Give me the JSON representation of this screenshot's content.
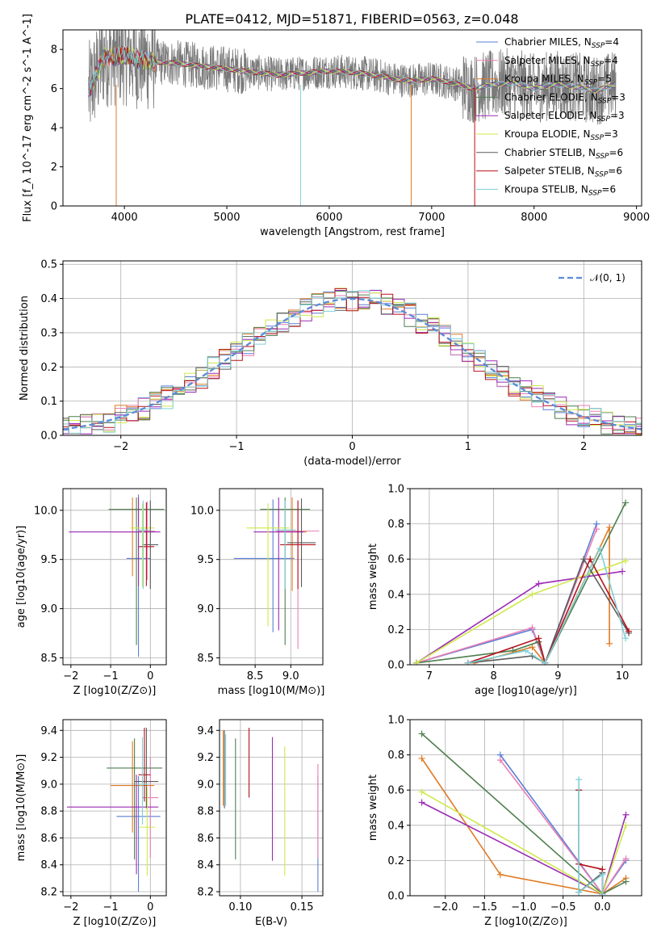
{
  "page_title": "PLATE=0412, MJD=51871, FIBERID=0563, z=0.048",
  "model_colors": [
    "#5b7fd6",
    "#e97fb4",
    "#e07b24",
    "#4f7f4f",
    "#9b2ab5",
    "#cfe84a",
    "#5c5c5c",
    "#b5121b",
    "#7fd0d6"
  ],
  "chart_data": [
    {
      "id": "spectrum",
      "type": "line",
      "title": "PLATE=0412, MJD=51871, FIBERID=0563, z=0.048",
      "xlabel": "wavelength [Angstrom, rest frame]",
      "ylabel": "Flux [f_λ 10^-17 erg cm^-2 s^-1 A^-1]",
      "xlim": [
        3400,
        9050
      ],
      "ylim": [
        0,
        9
      ],
      "x_ticks": [
        "4000",
        "5000",
        "6000",
        "7000",
        "8000",
        "9000"
      ],
      "y_ticks": [
        "0",
        "2",
        "4",
        "6",
        "8"
      ],
      "legend_position": "right",
      "legend": [
        "Chabrier MILES, N_SSP=4",
        "Salpeter MILES, N_SSP=4",
        "Kroupa MILES, N_SSP=5",
        "Chabrier ELODIE, N_SSP=3",
        "Salpeter ELODIE, N_SSP=3",
        "Kroupa ELODIE, N_SSP=3",
        "Chabrier STELIB, N_SSP=6",
        "Salpeter STELIB, N_SSP=6",
        "Kroupa STELIB, N_SSP=6"
      ],
      "legend_display": [
        {
          "main": "Chabrier MILES, N",
          "sub": "SSP",
          "tail": "=4"
        },
        {
          "main": "Salpeter MILES, N",
          "sub": "SSP",
          "tail": "=4"
        },
        {
          "main": "Kroupa MILES, N",
          "sub": "SSP",
          "tail": "=5"
        },
        {
          "main": "Chabrier ELODIE, N",
          "sub": "SSP",
          "tail": "=3"
        },
        {
          "main": "Salpeter ELODIE, N",
          "sub": "SSP",
          "tail": "=3"
        },
        {
          "main": "Kroupa ELODIE, N",
          "sub": "SSP",
          "tail": "=3"
        },
        {
          "main": "Chabrier STELIB, N",
          "sub": "SSP",
          "tail": "=6"
        },
        {
          "main": "Salpeter STELIB, N",
          "sub": "SSP",
          "tail": "=6"
        },
        {
          "main": "Kroupa STELIB, N",
          "sub": "SSP",
          "tail": "=6"
        }
      ],
      "data_envelope": {
        "x": [
          3650,
          3800,
          4000,
          4200,
          4500,
          5000,
          5500,
          6000,
          6300,
          6550,
          6600,
          6800,
          7000,
          7200,
          7400,
          7600,
          7800,
          8000,
          8200,
          8400,
          8600,
          8800
        ],
        "y": [
          5.8,
          7.6,
          7.7,
          7.4,
          7.3,
          7.0,
          6.7,
          6.9,
          6.8,
          6.6,
          6.5,
          6.4,
          6.5,
          6.3,
          6.0,
          6.2,
          6.3,
          6.0,
          6.2,
          6.1,
          5.9,
          6.2
        ]
      }
    },
    {
      "id": "residuals",
      "type": "histogram",
      "xlabel": "(data-model)/error",
      "ylabel": "Normed distribution",
      "xlim": [
        -2.5,
        2.5
      ],
      "ylim": [
        0,
        0.51
      ],
      "x_ticks": [
        "−2",
        "−1",
        "0",
        "1",
        "2"
      ],
      "y_ticks": [
        "0.0",
        "0.1",
        "0.2",
        "0.3",
        "0.4",
        "0.5"
      ],
      "legend": [
        "𝒩(0, 1)"
      ],
      "legend_position": "top-right",
      "bin_width": 0.1
    },
    {
      "id": "age_vs_Z",
      "type": "scatter",
      "xlabel": "Z [log10(Z/Z⊙)]",
      "ylabel": "age  [log10(age/yr)]",
      "xlim": [
        -2.2,
        0.4
      ],
      "ylim": [
        8.43,
        10.22
      ],
      "x_ticks": [
        "−2",
        "−1",
        "0"
      ],
      "y_ticks": [
        "8.5",
        "9.0",
        "9.5",
        "10.0"
      ],
      "points": [
        {
          "x": -0.3,
          "y": 9.51,
          "xerr": [
            0.3,
            0.3
          ],
          "yerr": [
            1.0,
            0.65
          ]
        },
        {
          "x": -0.08,
          "y": 9.79,
          "xerr": [
            0.2,
            0.2
          ],
          "yerr": [
            0.5,
            0.3
          ]
        },
        {
          "x": -0.45,
          "y": 9.78,
          "xerr": [
            0.55,
            0.55
          ],
          "yerr": [
            0.45,
            0.35
          ]
        },
        {
          "x": -0.35,
          "y": 10.01,
          "xerr": [
            0.7,
            0.7
          ],
          "yerr": [
            1.38,
            0.12
          ]
        },
        {
          "x": -0.3,
          "y": 9.78,
          "xerr": [
            1.75,
            0.55
          ],
          "yerr": [
            0.55,
            0.35
          ]
        },
        {
          "x": -0.2,
          "y": 9.82,
          "xerr": [
            0.3,
            0.3
          ],
          "yerr": [
            0.6,
            0.25
          ]
        },
        {
          "x": 0.0,
          "y": 9.65,
          "xerr": [
            0.2,
            0.2
          ],
          "yerr": [
            0.45,
            0.45
          ]
        },
        {
          "x": -0.1,
          "y": 9.63,
          "xerr": [
            0.2,
            0.2
          ],
          "yerr": [
            0.4,
            0.45
          ]
        },
        {
          "x": -0.18,
          "y": 9.8,
          "xerr": [
            0.15,
            0.15
          ],
          "yerr": [
            0.6,
            0.3
          ]
        }
      ]
    },
    {
      "id": "age_vs_mass",
      "type": "scatter",
      "xlabel": "mass [log10(M/M⊙)]",
      "ylabel": "",
      "xlim": [
        8.0,
        9.45
      ],
      "ylim": [
        8.43,
        10.22
      ],
      "x_ticks": [
        "8.5",
        "9.0"
      ],
      "y_ticks": [
        "8.5",
        "9.0",
        "9.5",
        "10.0"
      ],
      "points": [
        {
          "x": 8.75,
          "y": 9.51,
          "xerr": [
            0.55,
            0.3
          ],
          "yerr": [
            0.75,
            0.6
          ]
        },
        {
          "x": 9.1,
          "y": 9.79,
          "xerr": [
            0.3,
            0.3
          ],
          "yerr": [
            1.2,
            0.3
          ]
        },
        {
          "x": 9.02,
          "y": 9.78,
          "xerr": [
            0.25,
            0.2
          ],
          "yerr": [
            0.6,
            0.35
          ]
        },
        {
          "x": 8.92,
          "y": 10.01,
          "xerr": [
            0.35,
            0.35
          ],
          "yerr": [
            1.38,
            0.12
          ]
        },
        {
          "x": 8.83,
          "y": 9.78,
          "xerr": [
            0.35,
            0.35
          ],
          "yerr": [
            1.0,
            0.35
          ]
        },
        {
          "x": 8.68,
          "y": 9.82,
          "xerr": [
            0.3,
            0.3
          ],
          "yerr": [
            1.0,
            0.25
          ]
        },
        {
          "x": 9.15,
          "y": 9.67,
          "xerr": [
            0.2,
            0.2
          ],
          "yerr": [
            0.45,
            0.45
          ]
        },
        {
          "x": 9.1,
          "y": 9.65,
          "xerr": [
            0.25,
            0.25
          ],
          "yerr": [
            0.45,
            0.45
          ]
        },
        {
          "x": 8.92,
          "y": 9.8,
          "xerr": [
            0.15,
            0.15
          ],
          "yerr": [
            0.6,
            0.3
          ]
        }
      ]
    },
    {
      "id": "weight_vs_age",
      "type": "line",
      "xlabel": "age  [log10(age/yr)]",
      "ylabel": "mass weight",
      "xlim": [
        6.7,
        10.3
      ],
      "ylim": [
        0,
        1.0
      ],
      "x_ticks": [
        "7",
        "8",
        "9",
        "10"
      ],
      "y_ticks": [
        "0.0",
        "0.2",
        "0.4",
        "0.6",
        "0.8",
        "1.0"
      ],
      "series": [
        {
          "x": [
            6.8,
            8.6,
            8.8,
            9.6
          ],
          "y": [
            0.01,
            0.2,
            0.01,
            0.8
          ]
        },
        {
          "x": [
            6.8,
            8.6,
            8.8,
            9.6
          ],
          "y": [
            0.01,
            0.21,
            0.01,
            0.77
          ]
        },
        {
          "x": [
            7.7,
            8.6,
            8.8,
            9.8,
            9.8
          ],
          "y": [
            0.01,
            0.1,
            0.01,
            0.78,
            0.12
          ]
        },
        {
          "x": [
            6.8,
            8.3,
            8.7,
            8.8,
            10.05
          ],
          "y": [
            0.01,
            0.08,
            0.13,
            0.01,
            0.92
          ]
        },
        {
          "x": [
            6.8,
            8.7,
            10.0
          ],
          "y": [
            0.01,
            0.46,
            0.53
          ]
        },
        {
          "x": [
            6.8,
            8.6,
            10.05
          ],
          "y": [
            0.01,
            0.4,
            0.59
          ]
        },
        {
          "x": [
            7.6,
            8.6,
            8.8,
            9.4,
            10.1
          ],
          "y": [
            0.01,
            0.05,
            0.01,
            0.6,
            0.18
          ]
        },
        {
          "x": [
            7.6,
            8.7,
            8.8,
            9.5,
            10.1
          ],
          "y": [
            0.01,
            0.15,
            0.01,
            0.6,
            0.19
          ]
        },
        {
          "x": [
            7.6,
            8.5,
            8.8,
            9.65,
            10.05
          ],
          "y": [
            0.01,
            0.08,
            0.01,
            0.66,
            0.15
          ]
        }
      ]
    },
    {
      "id": "mass_vs_Z",
      "type": "scatter",
      "xlabel": "Z [log10(Z/Z⊙)]",
      "ylabel": "mass [log10(M/M⊙)]",
      "xlim": [
        -2.2,
        0.4
      ],
      "ylim": [
        8.17,
        9.48
      ],
      "x_ticks": [
        "−2",
        "−1",
        "0"
      ],
      "y_ticks": [
        "8.2",
        "8.4",
        "8.6",
        "8.8",
        "9.0",
        "9.2",
        "9.4"
      ],
      "points": [
        {
          "x": -0.3,
          "y": 8.76,
          "xerr": [
            0.55,
            0.55
          ],
          "yerr": [
            0.56,
            0.3
          ]
        },
        {
          "x": 0.0,
          "y": 8.9,
          "xerr": [
            0.2,
            0.2
          ],
          "yerr": [
            0.45,
            0.3
          ]
        },
        {
          "x": -0.45,
          "y": 8.99,
          "xerr": [
            0.55,
            0.55
          ],
          "yerr": [
            0.35,
            0.33
          ]
        },
        {
          "x": -0.4,
          "y": 9.12,
          "xerr": [
            0.7,
            0.7
          ],
          "yerr": [
            0.68,
            0.22
          ]
        },
        {
          "x": -0.35,
          "y": 8.83,
          "xerr": [
            1.75,
            0.55
          ],
          "yerr": [
            0.5,
            0.24
          ]
        },
        {
          "x": -0.08,
          "y": 8.68,
          "xerr": [
            0.2,
            0.2
          ],
          "yerr": [
            0.36,
            0.3
          ]
        },
        {
          "x": -0.1,
          "y": 9.02,
          "xerr": [
            0.3,
            0.3
          ],
          "yerr": [
            0.2,
            0.4
          ]
        },
        {
          "x": -0.15,
          "y": 9.07,
          "xerr": [
            0.15,
            0.15
          ],
          "yerr": [
            0.2,
            0.35
          ]
        },
        {
          "x": -0.2,
          "y": 9.0,
          "xerr": [
            0.15,
            0.15
          ],
          "yerr": [
            0.3,
            0.35
          ]
        }
      ]
    },
    {
      "id": "mass_vs_ebv",
      "type": "scatter",
      "xlabel": "E(B-V)",
      "ylabel": "",
      "xlim": [
        0.083,
        0.167
      ],
      "ylim": [
        8.17,
        9.48
      ],
      "x_ticks": [
        "0.10",
        "0.15"
      ],
      "y_ticks": [
        "8.2",
        "8.4",
        "8.6",
        "8.8",
        "9.0",
        "9.2",
        "9.4"
      ],
      "points": [
        {
          "x": 0.163,
          "y": 8.76,
          "yerr": [
            0.56,
            0.3
          ]
        },
        {
          "x": 0.163,
          "y": 8.9,
          "yerr": [
            0.45,
            0.25
          ]
        },
        {
          "x": 0.086,
          "y": 9.12,
          "yerr": [
            0.28,
            0.28
          ]
        },
        {
          "x": 0.096,
          "y": 9.12,
          "yerr": [
            0.68,
            0.22
          ]
        },
        {
          "x": 0.126,
          "y": 8.83,
          "yerr": [
            0.4,
            0.52
          ]
        },
        {
          "x": 0.136,
          "y": 8.68,
          "yerr": [
            0.36,
            0.6
          ]
        },
        {
          "x": 0.087,
          "y": 9.12,
          "yerr": [
            0.3,
            0.28
          ]
        },
        {
          "x": 0.107,
          "y": 9.12,
          "yerr": [
            0.22,
            0.3
          ]
        },
        {
          "x": 0.088,
          "y": 9.12,
          "yerr": [
            0.28,
            0.25
          ]
        }
      ]
    },
    {
      "id": "weight_vs_Z",
      "type": "line",
      "xlabel": "Z [log10(Z/Z⊙)]",
      "ylabel": "mass weight",
      "xlim": [
        -2.45,
        0.5
      ],
      "ylim": [
        0,
        1.0
      ],
      "x_ticks": [
        "−2.0",
        "−1.5",
        "−1.0",
        "−0.5",
        "0.0"
      ],
      "y_ticks": [
        "0.0",
        "0.2",
        "0.4",
        "0.6",
        "0.8",
        "1.0"
      ],
      "series": [
        {
          "x": [
            -1.3,
            0.0,
            0.3
          ],
          "y": [
            0.8,
            0.01,
            0.2
          ]
        },
        {
          "x": [
            -1.3,
            0.0,
            0.3
          ],
          "y": [
            0.77,
            0.01,
            0.21
          ]
        },
        {
          "x": [
            -2.3,
            -1.3,
            0.0,
            0.3
          ],
          "y": [
            0.78,
            0.12,
            0.01,
            0.1
          ]
        },
        {
          "x": [
            -2.3,
            0.0,
            0.3
          ],
          "y": [
            0.92,
            0.01,
            0.08
          ]
        },
        {
          "x": [
            -2.3,
            0.0,
            0.3
          ],
          "y": [
            0.53,
            0.01,
            0.46
          ]
        },
        {
          "x": [
            -2.3,
            0.0,
            0.3
          ],
          "y": [
            0.59,
            0.01,
            0.4
          ]
        },
        {
          "x": [
            -0.3,
            -0.3,
            0.0,
            0.0
          ],
          "y": [
            0.6,
            0.02,
            0.13,
            0.01
          ]
        },
        {
          "x": [
            -0.3,
            -0.3,
            0.0,
            0.0
          ],
          "y": [
            0.6,
            0.18,
            0.15,
            0.01
          ]
        },
        {
          "x": [
            -0.3,
            -0.3,
            0.0,
            0.0
          ],
          "y": [
            0.66,
            0.02,
            0.12,
            0.01
          ]
        }
      ]
    }
  ]
}
